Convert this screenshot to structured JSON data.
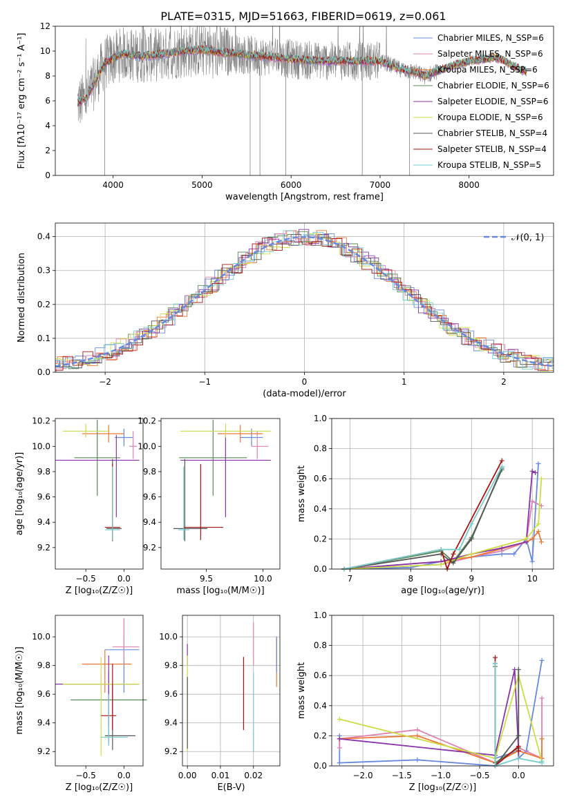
{
  "figure": {
    "title": "PLATE=0315, MJD=51663, FIBERID=0619, z=0.061"
  },
  "chart_data": [
    {
      "id": "spectrum",
      "type": "line",
      "xlabel": "wavelength [Angstrom, rest frame]",
      "ylabel": "Flux [fλ10⁻¹⁷ erg cm⁻² s⁻¹ A⁻¹]",
      "xlim": [
        3350,
        8950
      ],
      "ylim": [
        0,
        12
      ],
      "xticks": [
        4000,
        5000,
        6000,
        7000,
        8000
      ],
      "yticks": [
        0,
        2,
        4,
        6,
        8,
        10,
        12
      ],
      "grid": false,
      "legend_position": "right",
      "legend": [
        {
          "label": "Chabrier MILES, N_SSP=6",
          "color": "#6688dd"
        },
        {
          "label": "Salpeter MILES, N_SSP=6",
          "color": "#e080b0"
        },
        {
          "label": "Kroupa MILES, N_SSP=6",
          "color": "#ee7733"
        },
        {
          "label": "Chabrier ELODIE, N_SSP=6",
          "color": "#558855"
        },
        {
          "label": "Salpeter ELODIE, N_SSP=6",
          "color": "#8833aa"
        },
        {
          "label": "Kroupa ELODIE, N_SSP=6",
          "color": "#ccdd44"
        },
        {
          "label": "Chabrier STELIB, N_SSP=4",
          "color": "#555555"
        },
        {
          "label": "Salpeter STELIB, N_SSP=4",
          "color": "#aa1111"
        },
        {
          "label": "Kroupa STELIB, N_SSP=5",
          "color": "#77cccc"
        }
      ],
      "data_color": "#808080",
      "model_anchors_x": [
        3600,
        3700,
        3900,
        4100,
        4300,
        4500,
        4800,
        5000,
        5200,
        5500,
        5800,
        6100,
        6400,
        6700,
        7000,
        7200,
        7400,
        7500,
        7800,
        8000,
        8300,
        8650
      ],
      "model_anchors_y": [
        5.8,
        6.2,
        9.0,
        9.8,
        9.6,
        9.7,
        10.0,
        10.1,
        9.9,
        9.7,
        9.5,
        9.3,
        9.2,
        9.2,
        9.2,
        8.6,
        8.3,
        8.0,
        8.8,
        9.2,
        9.5,
        8.3
      ]
    },
    {
      "id": "residuals",
      "type": "histogram",
      "xlabel": "(data-model)/error",
      "ylabel": "Normed distribution",
      "xlim": [
        -2.5,
        2.5
      ],
      "ylim": [
        0,
        0.44
      ],
      "xticks": [
        -2,
        -1,
        0,
        1,
        2
      ],
      "yticks": [
        0.0,
        0.1,
        0.2,
        0.3,
        0.4
      ],
      "grid": true,
      "bin_width": 0.1,
      "legend_position": "top-right",
      "legend": [
        {
          "label": "𝒩(0, 1)",
          "color": "#6688dd",
          "style": "dashed"
        }
      ],
      "hist_colors": [
        "#6688dd",
        "#e080b0",
        "#ee7733",
        "#558855",
        "#8833aa",
        "#ccdd44",
        "#555555",
        "#aa1111",
        "#77cccc"
      ]
    },
    {
      "id": "age-vs-Z",
      "type": "errorbar",
      "xlabel": "Z [log₁₀(Z/Z☉)]",
      "ylabel": "age  [log₁₀(age/yr)]",
      "xlim": [
        -0.9,
        0.25
      ],
      "ylim": [
        9.03,
        10.22
      ],
      "xticks": [
        -0.5,
        0.0
      ],
      "yticks": [
        9.2,
        9.4,
        9.6,
        9.8,
        10.0,
        10.2
      ],
      "grid": false,
      "points": [
        {
          "x": 0.0,
          "xe": [
            0.12,
            0.12
          ],
          "y": 10.07,
          "ye": [
            0.07,
            0.07
          ],
          "color": "#6688dd"
        },
        {
          "x": 0.12,
          "xe": [
            0.05,
            0.05
          ],
          "y": 10.0,
          "ye": [
            0.1,
            0.12
          ],
          "color": "#e080b0"
        },
        {
          "x": -0.2,
          "xe": [
            0.35,
            0.2
          ],
          "y": 10.1,
          "ye": [
            0.07,
            0.07
          ],
          "color": "#ee7733"
        },
        {
          "x": -0.35,
          "xe": [
            0.3,
            0.3
          ],
          "y": 9.91,
          "ye": [
            0.3,
            0.3
          ],
          "color": "#558855"
        },
        {
          "x": -0.1,
          "xe": [
            0.8,
            0.3
          ],
          "y": 9.89,
          "ye": [
            0.45,
            0.2
          ],
          "color": "#8833aa"
        },
        {
          "x": -0.5,
          "xe": [
            0.3,
            0.3
          ],
          "y": 10.12,
          "ye": [
            0.05,
            0.06
          ],
          "color": "#ccdd44"
        },
        {
          "x": -0.15,
          "xe": [
            0.08,
            0.12
          ],
          "y": 9.35,
          "ye": [
            0.1,
            0.55
          ],
          "color": "#555555"
        },
        {
          "x": -0.15,
          "xe": [
            0.1,
            0.1
          ],
          "y": 9.36,
          "ye": [
            0.1,
            0.5
          ],
          "color": "#aa1111"
        },
        {
          "x": -0.15,
          "xe": [
            0.1,
            0.1
          ],
          "y": 9.34,
          "ye": [
            0.08,
            0.5
          ],
          "color": "#77cccc"
        }
      ]
    },
    {
      "id": "age-vs-mass",
      "type": "errorbar",
      "xlabel": "mass [log₁₀(M/M☉)]",
      "ylabel": "",
      "xlim": [
        9.1,
        10.15
      ],
      "ylim": [
        9.03,
        10.22
      ],
      "xticks": [
        9.5,
        10.0
      ],
      "yticks": [
        9.2,
        9.4,
        9.6,
        9.8,
        10.0,
        10.2
      ],
      "grid": false,
      "points": [
        {
          "x": 9.9,
          "xe": [
            0.1,
            0.1
          ],
          "y": 10.07,
          "ye": [
            0.07,
            0.07
          ],
          "color": "#6688dd"
        },
        {
          "x": 9.95,
          "xe": [
            0.05,
            0.1
          ],
          "y": 10.0,
          "ye": [
            0.1,
            0.12
          ],
          "color": "#e080b0"
        },
        {
          "x": 9.8,
          "xe": [
            0.2,
            0.2
          ],
          "y": 10.1,
          "ye": [
            0.07,
            0.07
          ],
          "color": "#ee7733"
        },
        {
          "x": 9.56,
          "xe": [
            0.3,
            0.3
          ],
          "y": 9.91,
          "ye": [
            0.3,
            0.3
          ],
          "color": "#558855"
        },
        {
          "x": 9.67,
          "xe": [
            0.4,
            0.4
          ],
          "y": 9.89,
          "ye": [
            0.45,
            0.2
          ],
          "color": "#8833aa"
        },
        {
          "x": 9.67,
          "xe": [
            0.4,
            0.4
          ],
          "y": 10.12,
          "ye": [
            0.05,
            0.06
          ],
          "color": "#ccdd44"
        },
        {
          "x": 9.31,
          "xe": [
            0.1,
            0.2
          ],
          "y": 9.35,
          "ye": [
            0.1,
            0.55
          ],
          "color": "#555555"
        },
        {
          "x": 9.45,
          "xe": [
            0.15,
            0.2
          ],
          "y": 9.36,
          "ye": [
            0.1,
            0.5
          ],
          "color": "#aa1111"
        },
        {
          "x": 9.3,
          "xe": [
            0.05,
            0.05
          ],
          "y": 9.34,
          "ye": [
            0.08,
            0.5
          ],
          "color": "#77cccc"
        }
      ]
    },
    {
      "id": "weight-vs-age",
      "type": "line",
      "xlabel": "age  [log₁₀(age/yr)]",
      "ylabel": "mass weight",
      "xlim": [
        6.7,
        10.35
      ],
      "ylim": [
        0,
        1.0
      ],
      "xticks": [
        7,
        8,
        9,
        10
      ],
      "yticks": [
        0.0,
        0.2,
        0.4,
        0.6,
        0.8,
        1.0
      ],
      "grid": true,
      "series": [
        {
          "color": "#6688dd",
          "x": [
            6.9,
            8.0,
            8.5,
            9.0,
            9.5,
            9.7,
            9.9,
            10.0,
            10.1
          ],
          "y": [
            0.0,
            0.01,
            0.05,
            0.08,
            0.1,
            0.1,
            0.2,
            0.05,
            0.7
          ]
        },
        {
          "color": "#e080b0",
          "x": [
            6.9,
            8.5,
            9.0,
            9.5,
            9.9,
            10.0,
            10.15
          ],
          "y": [
            0.0,
            0.03,
            0.08,
            0.12,
            0.18,
            0.45,
            0.42
          ]
        },
        {
          "color": "#ee7733",
          "x": [
            6.9,
            8.5,
            9.0,
            9.9,
            10.0,
            10.1,
            10.15
          ],
          "y": [
            0.0,
            0.05,
            0.08,
            0.18,
            0.2,
            0.25,
            0.18
          ]
        },
        {
          "color": "#558855",
          "x": [
            6.9,
            8.5,
            8.7,
            9.0,
            9.5
          ],
          "y": [
            0.0,
            0.12,
            0.05,
            0.21,
            0.66
          ]
        },
        {
          "color": "#8833aa",
          "x": [
            6.9,
            8.5,
            9.0,
            9.5,
            9.9,
            10.0,
            10.05
          ],
          "y": [
            0.0,
            0.05,
            0.1,
            0.14,
            0.18,
            0.65,
            0.64
          ]
        },
        {
          "color": "#ccdd44",
          "x": [
            6.9,
            8.5,
            9.0,
            9.9,
            10.1,
            10.15
          ],
          "y": [
            0.0,
            0.03,
            0.1,
            0.2,
            0.3,
            0.6
          ]
        },
        {
          "color": "#555555",
          "x": [
            6.9,
            8.5,
            8.7,
            9.0,
            9.5
          ],
          "y": [
            0.0,
            0.1,
            0.04,
            0.2,
            0.67
          ]
        },
        {
          "color": "#aa1111",
          "x": [
            6.9,
            8.5,
            8.6,
            8.7,
            9.5
          ],
          "y": [
            0.0,
            0.13,
            0.0,
            0.1,
            0.72
          ]
        },
        {
          "color": "#77cccc",
          "x": [
            6.9,
            8.5,
            8.8,
            9.0,
            9.5
          ],
          "y": [
            0.0,
            0.13,
            0.13,
            0.3,
            0.68
          ]
        }
      ]
    },
    {
      "id": "mass-vs-Z",
      "type": "errorbar",
      "xlabel": "Z [log₁₀(Z/Z☉)]",
      "ylabel": "mass [log₁₀(M/M☉)]",
      "xlim": [
        -0.9,
        0.25
      ],
      "ylim": [
        9.1,
        10.15
      ],
      "xticks": [
        -0.5,
        0.0
      ],
      "yticks": [
        9.2,
        9.4,
        9.6,
        9.8,
        10.0
      ],
      "grid": false,
      "points": [
        {
          "x": 0.0,
          "xe": [
            0.25,
            0.2
          ],
          "y": 9.91,
          "ye": [
            0.3,
            0.1
          ],
          "color": "#6688dd"
        },
        {
          "x": 0.0,
          "xe": [
            0.15,
            0.2
          ],
          "y": 9.93,
          "ye": [
            0.1,
            0.2
          ],
          "color": "#e080b0"
        },
        {
          "x": -0.25,
          "xe": [
            0.3,
            0.35
          ],
          "y": 9.81,
          "ye": [
            0.2,
            0.1
          ],
          "color": "#ee7733"
        },
        {
          "x": -0.2,
          "xe": [
            0.5,
            0.5
          ],
          "y": 9.56,
          "ye": [
            0.3,
            0.2
          ],
          "color": "#558855"
        },
        {
          "x": -0.2,
          "xe": [
            0.7,
            0.4
          ],
          "y": 9.67,
          "ye": [
            0.3,
            0.2
          ],
          "color": "#8833aa"
        },
        {
          "x": -0.3,
          "xe": [
            0.5,
            0.5
          ],
          "y": 9.67,
          "ye": [
            0.5,
            0.19
          ],
          "color": "#ccdd44"
        },
        {
          "x": -0.15,
          "xe": [
            0.1,
            0.3
          ],
          "y": 9.31,
          "ye": [
            0.1,
            0.36
          ],
          "color": "#555555"
        },
        {
          "x": -0.15,
          "xe": [
            0.15,
            0.05
          ],
          "y": 9.45,
          "ye": [
            0.1,
            0.36
          ],
          "color": "#aa1111"
        },
        {
          "x": -0.2,
          "xe": [
            0.1,
            0.25
          ],
          "y": 9.3,
          "ye": [
            0.06,
            0.3
          ],
          "color": "#77cccc"
        }
      ]
    },
    {
      "id": "mass-vs-ebv",
      "type": "errorbar",
      "xlabel": "E(B-V)",
      "ylabel": "",
      "xlim": [
        -0.0015,
        0.028
      ],
      "ylim": [
        9.1,
        10.15
      ],
      "xticks": [
        0.0,
        0.01,
        0.02
      ],
      "yticks": [
        9.2,
        9.4,
        9.6,
        9.8,
        10.0
      ],
      "grid": true,
      "points": [
        {
          "x": 0.0,
          "xe": [
            0,
            0
          ],
          "y": 9.9,
          "ye": [
            0.1,
            0.05
          ],
          "color": "#8833aa"
        },
        {
          "x": 0.0,
          "xe": [
            0,
            0
          ],
          "y": 9.7,
          "ye": [
            0.5,
            0.17
          ],
          "color": "#ccdd44"
        },
        {
          "x": 0.0,
          "xe": [
            0,
            0
          ],
          "y": 9.5,
          "ye": [
            0.28,
            0.22
          ],
          "color": "#555555"
        },
        {
          "x": 0.017,
          "xe": [
            0,
            0
          ],
          "y": 9.6,
          "ye": [
            0.25,
            0.26
          ],
          "color": "#aa1111"
        },
        {
          "x": 0.02,
          "xe": [
            0,
            0
          ],
          "y": 9.95,
          "ye": [
            0.15,
            0.15
          ],
          "color": "#e080b0"
        },
        {
          "x": 0.02,
          "xe": [
            0,
            0
          ],
          "y": 9.5,
          "ye": [
            0.3,
            0.25
          ],
          "color": "#77cccc"
        },
        {
          "x": 0.027,
          "xe": [
            0,
            0
          ],
          "y": 9.8,
          "ye": [
            0.15,
            0.2
          ],
          "color": "#ee7733"
        },
        {
          "x": 0.027,
          "xe": [
            0,
            0
          ],
          "y": 9.85,
          "ye": [
            0.1,
            0.15
          ],
          "color": "#6688dd"
        }
      ]
    },
    {
      "id": "weight-vs-Z",
      "type": "line",
      "xlabel": "Z [log₁₀(Z/Z☉)]",
      "ylabel": "mass weight",
      "xlim": [
        -2.4,
        0.45
      ],
      "ylim": [
        0,
        1.0
      ],
      "xticks": [
        -2.0,
        -1.5,
        -1.0,
        -0.5,
        0.0
      ],
      "yticks": [
        0.0,
        0.2,
        0.4,
        0.6,
        0.8,
        1.0
      ],
      "grid": true,
      "series": [
        {
          "color": "#6688dd",
          "x": [
            -2.3,
            -2.3,
            -1.3,
            -0.3,
            -0.3,
            0.0,
            0.0,
            0.1,
            0.3
          ],
          "y": [
            0.2,
            0.02,
            0.04,
            0.0,
            0.05,
            0.1,
            0.05,
            0.1,
            0.7
          ]
        },
        {
          "color": "#e080b0",
          "x": [
            -2.3,
            -2.3,
            -1.3,
            -0.3,
            0.0,
            0.3,
            0.3
          ],
          "y": [
            0.12,
            0.18,
            0.24,
            0.02,
            0.12,
            0.05,
            0.45
          ]
        },
        {
          "color": "#ee7733",
          "x": [
            -2.3,
            -1.3,
            -0.3,
            0.0,
            0.3,
            0.3
          ],
          "y": [
            0.18,
            0.2,
            0.02,
            0.1,
            0.05,
            0.18
          ]
        },
        {
          "color": "#558855",
          "x": [
            -0.3,
            -0.3,
            0.0,
            0.0
          ],
          "y": [
            0.66,
            0.02,
            0.12,
            0.2
          ]
        },
        {
          "color": "#8833aa",
          "x": [
            -2.3,
            -0.3,
            -0.05,
            0.0,
            0.0
          ],
          "y": [
            0.18,
            0.07,
            0.64,
            0.1,
            0.05
          ]
        },
        {
          "color": "#ccdd44",
          "x": [
            -2.3,
            -0.3,
            0.0,
            0.3
          ],
          "y": [
            0.31,
            0.05,
            0.6,
            0.03
          ]
        },
        {
          "color": "#555555",
          "x": [
            -0.3,
            -0.3,
            0.0,
            0.0
          ],
          "y": [
            0.68,
            0.0,
            0.2,
            0.64
          ]
        },
        {
          "color": "#aa1111",
          "x": [
            -0.3,
            -0.3,
            0.0,
            0.0
          ],
          "y": [
            0.72,
            0.0,
            0.13,
            0.1
          ]
        },
        {
          "color": "#77cccc",
          "x": [
            -0.3,
            -0.3,
            0.0,
            0.3,
            0.3
          ],
          "y": [
            0.68,
            0.0,
            0.05,
            0.02,
            0.03
          ]
        }
      ]
    }
  ]
}
